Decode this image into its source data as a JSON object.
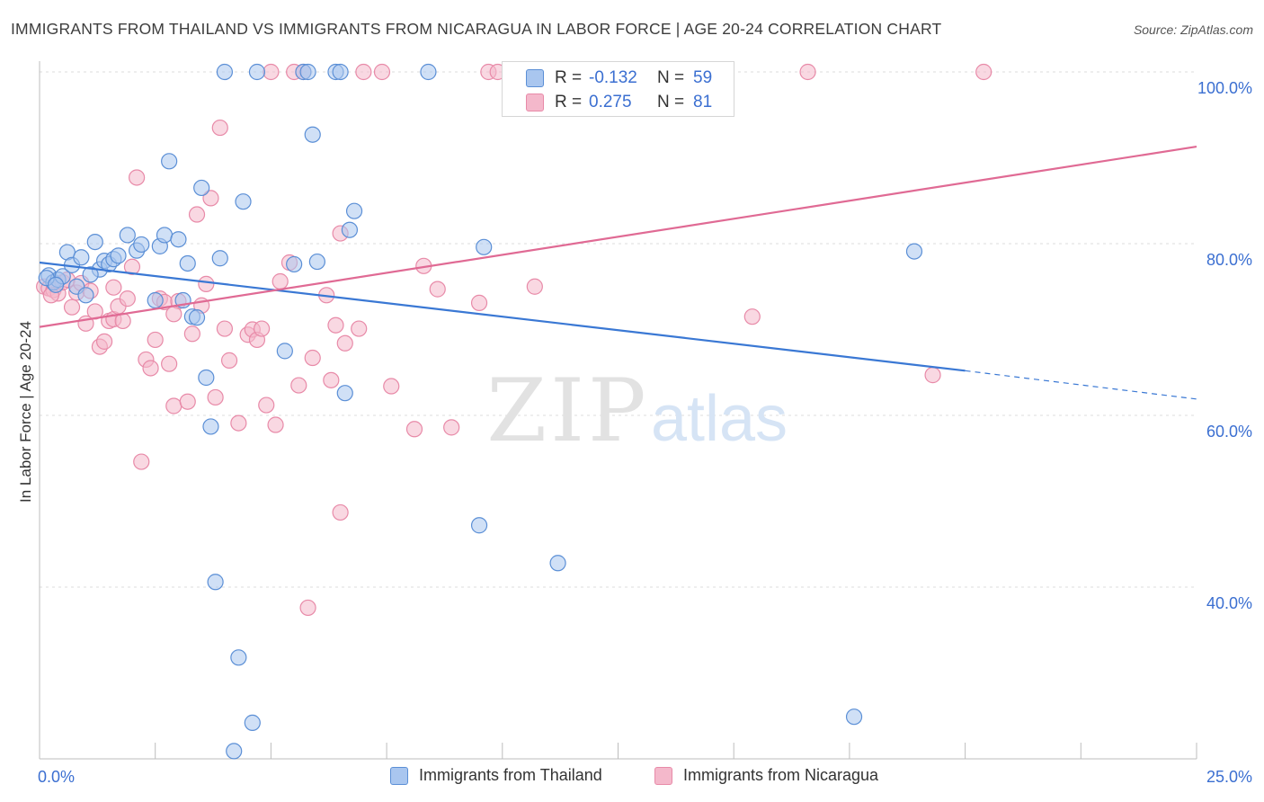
{
  "header": {
    "title": "IMMIGRANTS FROM THAILAND VS IMMIGRANTS FROM NICARAGUA IN LABOR FORCE | AGE 20-24 CORRELATION CHART",
    "source": "Source: ZipAtlas.com"
  },
  "watermark": {
    "zip": "ZIP",
    "atlas": "atlas"
  },
  "legend_stats": [
    {
      "r_label": "R =",
      "r_value": "-0.132",
      "n_label": "N =",
      "n_value": "59"
    },
    {
      "r_label": "R =",
      "r_value": "0.275",
      "n_label": "N =",
      "n_value": "81"
    }
  ],
  "colors": {
    "thailand_fill": "#a9c6ef",
    "thailand_stroke": "#5b8fd6",
    "thailand_line": "#3a78d4",
    "nicaragua_fill": "#f4b8cb",
    "nicaragua_stroke": "#e88aa8",
    "nicaragua_line": "#e06a94",
    "axis_label": "#3b6fd1",
    "grid": "#dcdcdc"
  },
  "chart_data": {
    "type": "scatter",
    "title": "IMMIGRANTS FROM THAILAND VS IMMIGRANTS FROM NICARAGUA IN LABOR FORCE | AGE 20-24 CORRELATION CHART",
    "xlabel": "",
    "ylabel": "In Labor Force | Age 20-24",
    "xlim": [
      0,
      25
    ],
    "ylim": [
      20,
      100
    ],
    "x_tick_labels": [
      "0.0%",
      "25.0%"
    ],
    "y_ticks": [
      40,
      60,
      80,
      100
    ],
    "y_tick_labels": [
      "40.0%",
      "60.0%",
      "80.0%",
      "100.0%"
    ],
    "grid": true,
    "legend_position": "bottom",
    "series": [
      {
        "name": "Immigrants from Thailand",
        "points": [
          [
            0.2,
            76.3
          ],
          [
            0.3,
            75.5
          ],
          [
            0.4,
            75.8
          ],
          [
            0.5,
            76.2
          ],
          [
            0.6,
            79.0
          ],
          [
            0.7,
            77.5
          ],
          [
            0.8,
            75.0
          ],
          [
            0.9,
            78.4
          ],
          [
            1.0,
            74.0
          ],
          [
            1.2,
            80.2
          ],
          [
            1.3,
            77.0
          ],
          [
            1.4,
            78.0
          ],
          [
            1.5,
            77.6
          ],
          [
            1.6,
            78.2
          ],
          [
            1.7,
            78.6
          ],
          [
            1.9,
            81.0
          ],
          [
            2.1,
            79.2
          ],
          [
            2.2,
            79.9
          ],
          [
            2.5,
            73.4
          ],
          [
            2.6,
            79.7
          ],
          [
            2.7,
            81.0
          ],
          [
            2.8,
            89.6
          ],
          [
            3.0,
            80.5
          ],
          [
            3.1,
            73.4
          ],
          [
            3.2,
            77.7
          ],
          [
            3.3,
            71.5
          ],
          [
            3.4,
            71.4
          ],
          [
            3.5,
            86.5
          ],
          [
            3.6,
            64.4
          ],
          [
            3.7,
            58.7
          ],
          [
            3.8,
            40.6
          ],
          [
            3.9,
            78.3
          ],
          [
            4.0,
            100.0
          ],
          [
            4.2,
            20.9
          ],
          [
            4.3,
            31.8
          ],
          [
            4.4,
            84.9
          ],
          [
            4.6,
            24.2
          ],
          [
            4.7,
            100.0
          ],
          [
            5.3,
            67.5
          ],
          [
            5.5,
            77.6
          ],
          [
            5.7,
            100.0
          ],
          [
            5.8,
            100.0
          ],
          [
            5.9,
            92.7
          ],
          [
            6.0,
            77.9
          ],
          [
            6.4,
            100.0
          ],
          [
            6.5,
            100.0
          ],
          [
            6.6,
            62.6
          ],
          [
            6.7,
            81.6
          ],
          [
            6.8,
            83.8
          ],
          [
            8.4,
            100.0
          ],
          [
            9.5,
            47.2
          ],
          [
            9.6,
            79.6
          ],
          [
            11.2,
            42.8
          ],
          [
            13.3,
            100.0
          ],
          [
            17.6,
            24.9
          ],
          [
            18.9,
            79.1
          ],
          [
            0.15,
            76.0
          ],
          [
            0.35,
            75.2
          ],
          [
            1.1,
            76.4
          ]
        ]
      },
      {
        "name": "Immigrants from Nicaragua",
        "points": [
          [
            0.1,
            75.0
          ],
          [
            0.2,
            74.8
          ],
          [
            0.3,
            74.6
          ],
          [
            0.4,
            74.2
          ],
          [
            0.5,
            75.5
          ],
          [
            0.6,
            75.8
          ],
          [
            0.7,
            72.6
          ],
          [
            0.8,
            74.3
          ],
          [
            0.9,
            75.4
          ],
          [
            1.0,
            70.7
          ],
          [
            1.1,
            74.5
          ],
          [
            1.2,
            72.1
          ],
          [
            1.3,
            68.0
          ],
          [
            1.4,
            68.6
          ],
          [
            1.5,
            71.0
          ],
          [
            1.6,
            71.2
          ],
          [
            1.7,
            72.7
          ],
          [
            1.8,
            71.0
          ],
          [
            1.9,
            73.6
          ],
          [
            2.0,
            77.3
          ],
          [
            2.1,
            87.7
          ],
          [
            2.2,
            54.6
          ],
          [
            2.3,
            66.5
          ],
          [
            2.4,
            65.5
          ],
          [
            2.5,
            68.8
          ],
          [
            2.6,
            73.6
          ],
          [
            2.7,
            73.2
          ],
          [
            2.8,
            66.0
          ],
          [
            2.9,
            61.1
          ],
          [
            3.0,
            73.3
          ],
          [
            3.2,
            61.6
          ],
          [
            3.3,
            69.5
          ],
          [
            3.4,
            83.4
          ],
          [
            3.5,
            72.8
          ],
          [
            3.6,
            75.3
          ],
          [
            3.7,
            85.3
          ],
          [
            3.8,
            62.1
          ],
          [
            3.9,
            93.5
          ],
          [
            4.0,
            70.1
          ],
          [
            4.1,
            66.4
          ],
          [
            4.3,
            59.1
          ],
          [
            4.5,
            69.4
          ],
          [
            4.6,
            70.0
          ],
          [
            4.7,
            68.8
          ],
          [
            4.8,
            70.1
          ],
          [
            4.9,
            61.2
          ],
          [
            5.0,
            100.0
          ],
          [
            5.1,
            58.9
          ],
          [
            5.2,
            75.6
          ],
          [
            5.4,
            77.8
          ],
          [
            5.5,
            100.0
          ],
          [
            5.6,
            63.5
          ],
          [
            5.7,
            100.0
          ],
          [
            5.9,
            66.7
          ],
          [
            6.2,
            74.0
          ],
          [
            6.3,
            64.1
          ],
          [
            6.4,
            70.5
          ],
          [
            6.5,
            81.2
          ],
          [
            6.6,
            68.4
          ],
          [
            6.9,
            70.1
          ],
          [
            7.0,
            100.0
          ],
          [
            7.4,
            100.0
          ],
          [
            7.6,
            63.4
          ],
          [
            8.1,
            58.4
          ],
          [
            8.3,
            77.4
          ],
          [
            8.6,
            74.7
          ],
          [
            8.9,
            58.6
          ],
          [
            9.5,
            73.1
          ],
          [
            9.7,
            100.0
          ],
          [
            9.9,
            100.0
          ],
          [
            10.7,
            75.0
          ],
          [
            13.1,
            100.0
          ],
          [
            15.4,
            71.5
          ],
          [
            16.6,
            100.0
          ],
          [
            19.3,
            64.7
          ],
          [
            20.4,
            100.0
          ],
          [
            5.8,
            37.6
          ],
          [
            6.5,
            48.7
          ],
          [
            1.6,
            74.9
          ],
          [
            2.9,
            71.8
          ],
          [
            0.25,
            74.0
          ]
        ]
      }
    ],
    "trend_lines": [
      {
        "series": "Immigrants from Thailand",
        "x0": 0,
        "y0": 77.8,
        "x1": 20.0,
        "y1": 65.2,
        "dashed_to_x": 25.0,
        "dashed_to_y": 61.9
      },
      {
        "series": "Immigrants from Nicaragua",
        "x0": 0,
        "y0": 70.3,
        "x1": 25.0,
        "y1": 91.3
      }
    ]
  }
}
